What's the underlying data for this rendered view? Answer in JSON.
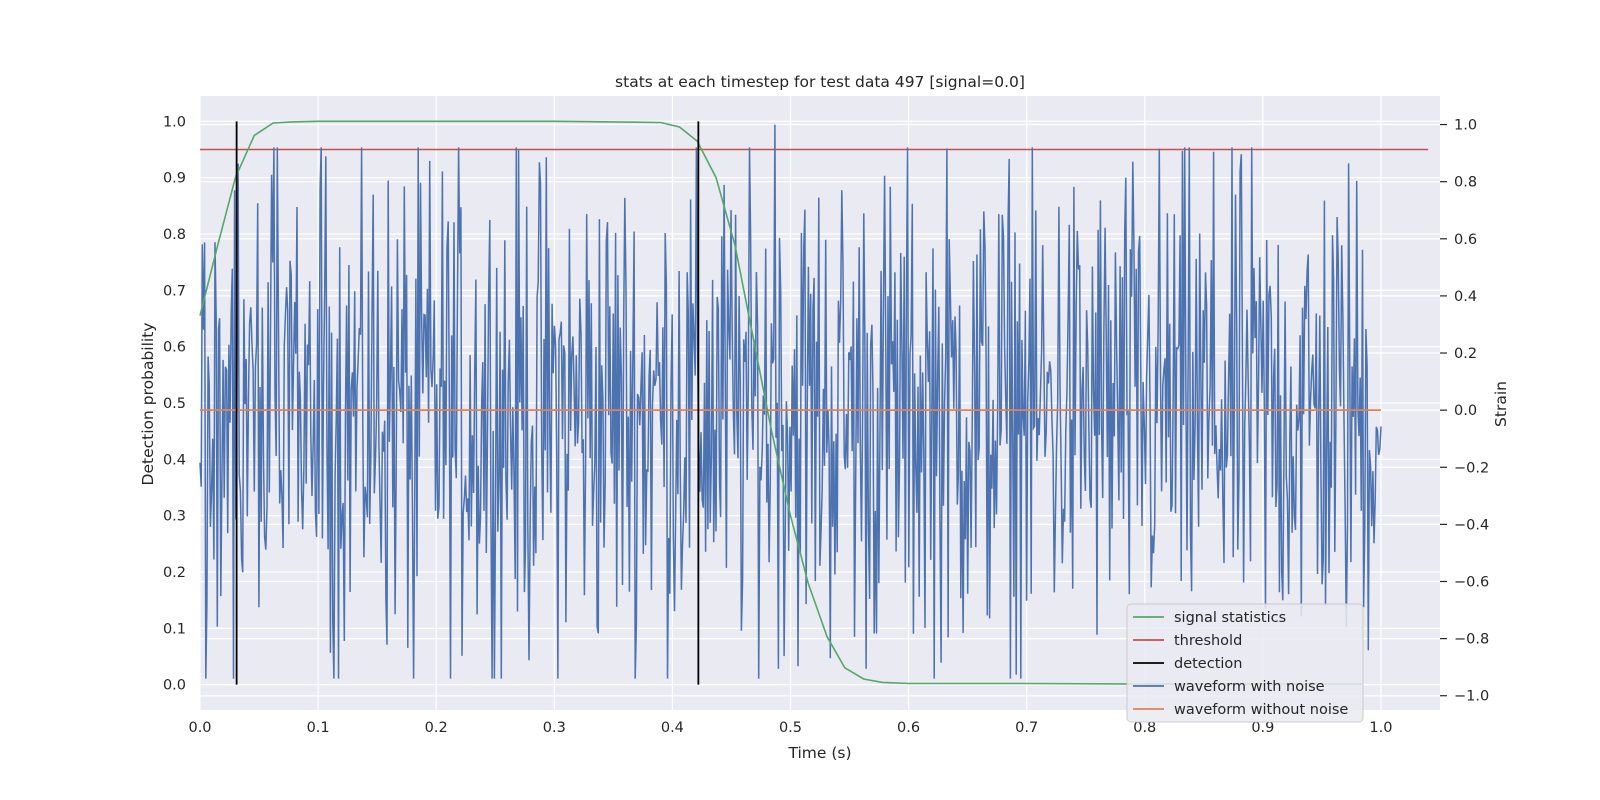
{
  "chart_data": {
    "type": "line",
    "title": "stats at each timestep for test data 497 [signal=0.0]",
    "xlabel": "Time (s)",
    "ylabel_left": "Detection probability",
    "ylabel_right": "Strain",
    "xlim": [
      0.0,
      1.05
    ],
    "ylim_left": [
      -0.045,
      1.045
    ],
    "ylim_right": [
      -1.05,
      1.1
    ],
    "x_ticks": [
      "0.0",
      "0.1",
      "0.2",
      "0.3",
      "0.4",
      "0.5",
      "0.6",
      "0.7",
      "0.8",
      "0.9",
      "1.0"
    ],
    "y_ticks_left": [
      "0.0",
      "0.1",
      "0.2",
      "0.3",
      "0.4",
      "0.5",
      "0.6",
      "0.7",
      "0.8",
      "0.9",
      "1.0"
    ],
    "y_ticks_right": [
      "−1.0",
      "−0.8",
      "−0.6",
      "−0.4",
      "−0.2",
      "0.0",
      "0.2",
      "0.4",
      "0.6",
      "0.8",
      "1.0"
    ],
    "grid": true,
    "legend_position": "lower-right",
    "colors": {
      "signal_statistics": "#55a868",
      "threshold": "#c44e52",
      "detection": "#000000",
      "waveform_with_noise": "#4c72b0",
      "waveform_without_noise": "#dd8452",
      "axes_background": "#eaeaf2",
      "grid": "#ffffff"
    },
    "series": [
      {
        "name": "signal statistics",
        "axis": "left",
        "x": [
          0.0,
          0.015,
          0.03,
          0.046,
          0.062,
          0.078,
          0.1,
          0.2,
          0.3,
          0.39,
          0.406,
          0.421,
          0.437,
          0.453,
          0.468,
          0.484,
          0.5,
          0.515,
          0.531,
          0.546,
          0.562,
          0.578,
          0.6,
          0.7,
          0.8,
          0.9,
          0.984
        ],
        "y": [
          0.655,
          0.78,
          0.9,
          0.975,
          0.997,
          0.999,
          1.0,
          1.0,
          1.0,
          0.998,
          0.99,
          0.965,
          0.9,
          0.78,
          0.62,
          0.45,
          0.3,
          0.18,
          0.085,
          0.03,
          0.01,
          0.004,
          0.002,
          0.002,
          0.001,
          0.001,
          0.001
        ]
      },
      {
        "name": "threshold",
        "axis": "left",
        "x": [
          0.0,
          1.04
        ],
        "y": [
          0.95,
          0.95
        ]
      },
      {
        "name": "detection",
        "axis": "left",
        "x_positions": [
          0.031,
          0.422
        ],
        "y_range": [
          0.0,
          1.0
        ]
      },
      {
        "name": "waveform with noise",
        "axis": "right",
        "x_range": [
          0.0,
          1.0
        ],
        "n_points": 1024,
        "approx_amplitude": 0.95,
        "peak": {
          "x": 0.487,
          "y": 1.0
        },
        "min": {
          "x": 0.181,
          "y": -0.94
        }
      },
      {
        "name": "waveform without noise",
        "axis": "right",
        "x": [
          0.0,
          1.0
        ],
        "y": [
          0.0,
          0.0
        ]
      }
    ]
  }
}
